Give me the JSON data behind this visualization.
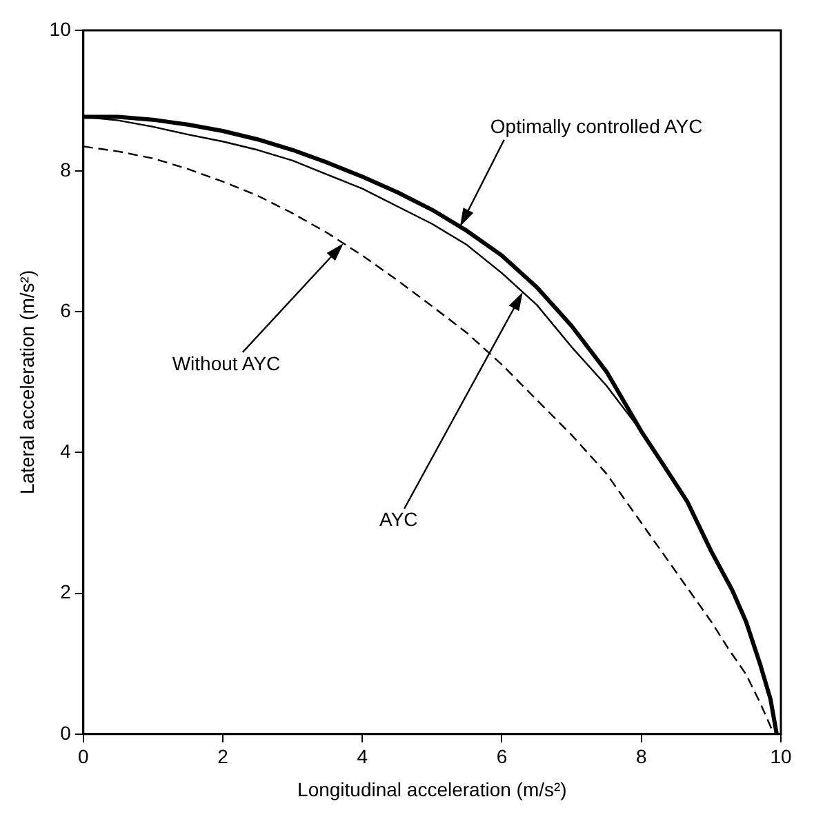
{
  "chart_data": {
    "type": "line",
    "xlabel": "Longitudinal acceleration (m/s²)",
    "ylabel": "Lateral acceleration (m/s²)",
    "xlim": [
      0,
      10
    ],
    "xticks": [
      0,
      2,
      4,
      6,
      8,
      10
    ],
    "ylim": [
      0,
      10
    ],
    "yticks": [
      0,
      2,
      4,
      6,
      8,
      10
    ],
    "grid": false,
    "legend": false,
    "marker": "none",
    "series": [
      {
        "color": "#000000",
        "line_style": "solid",
        "x": [
          0,
          0.5,
          1,
          1.5,
          2,
          2.5,
          3,
          3.5,
          4,
          4.5,
          5,
          5.5,
          6,
          6.5,
          7,
          7.5,
          8,
          8.3,
          8.66,
          9,
          9.3,
          9.5,
          9.7,
          9.85,
          9.94
        ],
        "values": [
          8.77,
          8.77,
          8.73,
          8.66,
          8.57,
          8.45,
          8.3,
          8.12,
          7.92,
          7.7,
          7.45,
          7.15,
          6.8,
          6.35,
          5.8,
          5.15,
          4.3,
          3.85,
          3.3,
          2.6,
          2.05,
          1.6,
          1.0,
          0.5,
          0
        ]
      },
      {
        "color": "#000000",
        "line_style": "solid",
        "x": [
          0,
          0.5,
          1,
          1.5,
          2,
          2.5,
          3,
          3.5,
          4,
          4.5,
          5,
          5.5,
          6,
          6.5,
          7,
          7.5,
          8,
          8.3,
          8.66,
          9,
          9.3,
          9.5,
          9.7,
          9.85,
          9.94
        ],
        "values": [
          8.77,
          8.72,
          8.63,
          8.52,
          8.42,
          8.3,
          8.15,
          7.95,
          7.75,
          7.5,
          7.25,
          6.95,
          6.55,
          6.1,
          5.5,
          4.95,
          4.3,
          3.85,
          3.3,
          2.6,
          2.05,
          1.6,
          1.0,
          0.5,
          0
        ]
      },
      {
        "color": "#000000",
        "line_style": "dashed",
        "x": [
          0,
          0.5,
          1,
          1.5,
          2,
          2.5,
          3,
          3.5,
          4,
          4.5,
          5,
          5.5,
          6,
          6.5,
          7,
          7.5,
          8,
          8.5,
          9,
          9.25,
          9.5,
          9.7,
          9.9
        ],
        "values": [
          8.35,
          8.28,
          8.18,
          8.03,
          7.85,
          7.65,
          7.4,
          7.12,
          6.8,
          6.45,
          6.08,
          5.7,
          5.25,
          4.75,
          4.25,
          3.7,
          3.0,
          2.3,
          1.6,
          1.21,
          0.85,
          0.45,
          0
        ]
      }
    ],
    "annotations": [
      "Optimally controlled AYC",
      "Without AYC",
      "AYC"
    ]
  }
}
